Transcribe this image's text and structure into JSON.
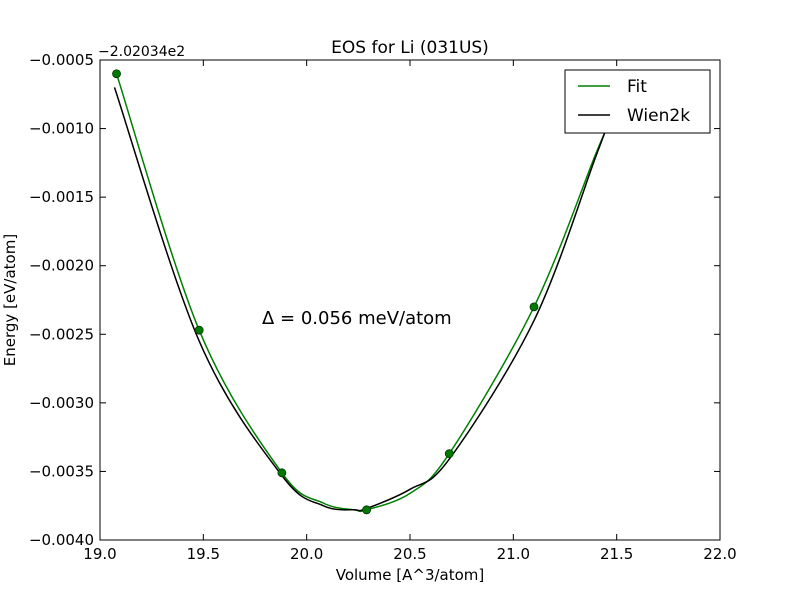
{
  "chart_data": {
    "type": "line",
    "title": "EOS for Li (031US)",
    "xlabel": "Volume [A^3/atom]",
    "ylabel": "Energy [eV/atom]",
    "offset_label": "−2.02034e2",
    "annotation": "Δ = 0.056 meV/atom",
    "xlim": [
      19.0,
      22.0
    ],
    "ylim": [
      -0.004,
      -0.0005
    ],
    "x_ticks": [
      19.0,
      19.5,
      20.0,
      20.5,
      21.0,
      21.5,
      22.0
    ],
    "x_tick_labels": [
      "19.0",
      "19.5",
      "20.0",
      "20.5",
      "21.0",
      "21.5",
      "22.0"
    ],
    "y_ticks": [
      -0.0005,
      -0.001,
      -0.0015,
      -0.002,
      -0.0025,
      -0.003,
      -0.0035,
      -0.004
    ],
    "y_tick_labels": [
      "−0.0005",
      "−0.0010",
      "−0.0015",
      "−0.0020",
      "−0.0025",
      "−0.0030",
      "−0.0035",
      "−0.0040"
    ],
    "grid": false,
    "legend_position": "top-right",
    "points": {
      "name": "data",
      "color": "#007a00",
      "x": [
        19.08,
        19.48,
        19.88,
        20.29,
        20.69,
        21.1
      ],
      "y": [
        -0.0006,
        -0.00247,
        -0.00351,
        -0.00378,
        -0.00337,
        -0.0023
      ]
    },
    "series": [
      {
        "name": "Fit",
        "color": "#008000",
        "x": [
          19.08,
          19.48,
          19.88,
          20.08,
          20.23,
          20.29,
          20.5,
          20.69,
          21.1,
          21.4,
          21.45
        ],
        "y": [
          -0.0006,
          -0.00247,
          -0.00351,
          -0.00373,
          -0.00378,
          -0.00378,
          -0.00366,
          -0.00337,
          -0.0023,
          -0.00118,
          -0.00101
        ]
      },
      {
        "name": "Wien2k",
        "color": "#000000",
        "x": [
          19.07,
          19.48,
          19.88,
          20.08,
          20.23,
          20.29,
          20.5,
          20.69,
          21.1,
          21.4,
          21.46
        ],
        "y": [
          -0.0007,
          -0.00255,
          -0.00353,
          -0.00375,
          -0.00378,
          -0.00377,
          -0.00363,
          -0.00341,
          -0.0024,
          -0.0012,
          -0.00096
        ]
      }
    ]
  }
}
